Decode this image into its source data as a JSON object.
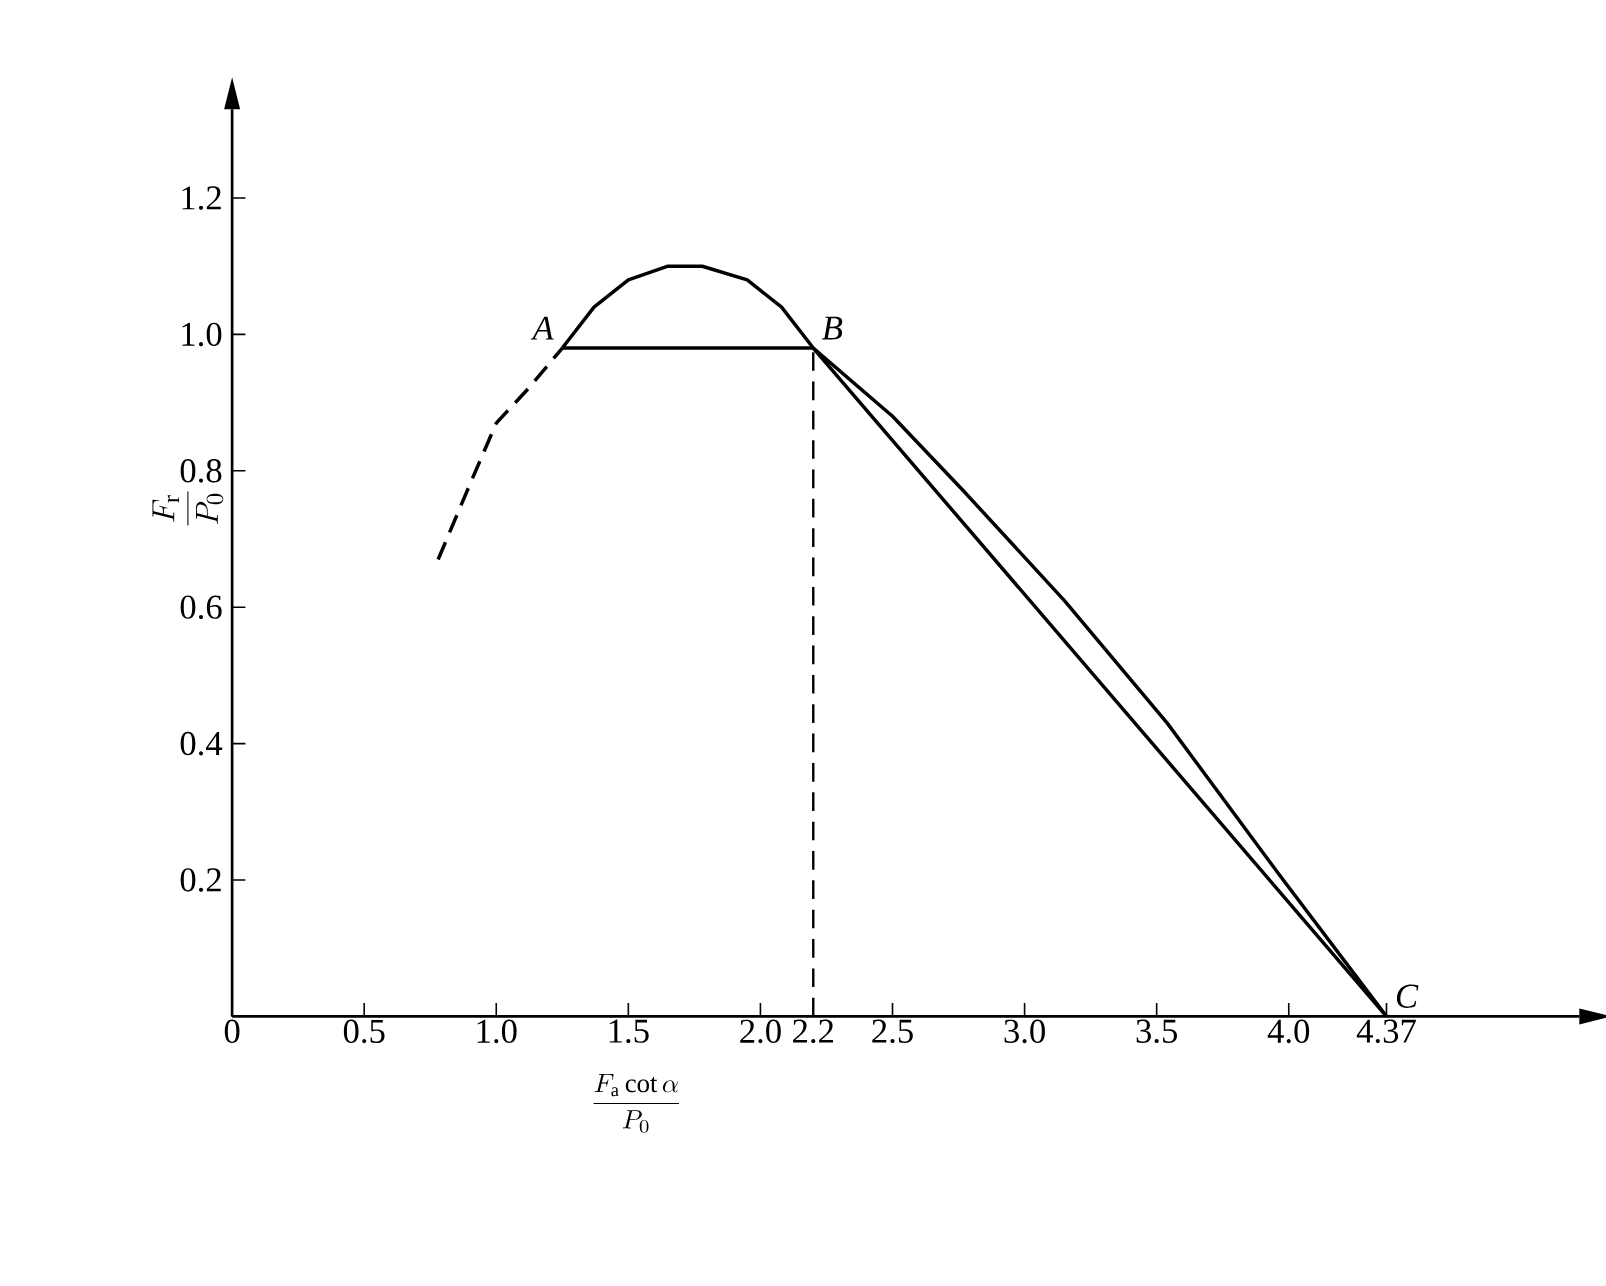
{
  "chart_data": {
    "type": "line",
    "xlabel": "\\frac{F_{\\mathrm{a}}\\cot\\alpha}{P_0}",
    "ylabel": "\\frac{F_{\\mathrm{r}}}{P_0}",
    "xlim": [
      0,
      5.1
    ],
    "ylim": [
      0,
      1.33
    ],
    "xticks": [
      0,
      0.5,
      {
        "value": 1.0,
        "label": "1.0"
      },
      1.5,
      {
        "value": 2.0,
        "label": "2.0"
      },
      2.2,
      2.5,
      {
        "value": 3.0,
        "label": "3.0"
      },
      3.5,
      {
        "value": 4.0,
        "label": "4.0"
      },
      4.37
    ],
    "yticks": [
      0.2,
      0.4,
      0.6,
      0.8,
      {
        "value": 1.0,
        "label": "1.0"
      },
      1.2
    ],
    "grid": false,
    "series": [
      {
        "color": "#000000",
        "line_style": "dashed",
        "x": [
          0.78,
          0.9,
          1.0,
          1.12,
          1.25
        ],
        "values": [
          0.67,
          0.78,
          0.87,
          0.92,
          0.98
        ]
      },
      {
        "color": "#000000",
        "line_style": "solid",
        "x": [
          1.25,
          1.37,
          1.5,
          1.65,
          1.78,
          1.95,
          2.08,
          2.2,
          2.5,
          2.77,
          3.15,
          3.54,
          3.96,
          4.37
        ],
        "values": [
          0.98,
          1.04,
          1.08,
          1.1,
          1.1,
          1.08,
          1.04,
          0.98,
          0.88,
          0.77,
          0.61,
          0.43,
          0.21,
          0
        ]
      },
      {
        "color": "#000000",
        "line_style": "solid",
        "x": [
          1.25,
          2.2,
          4.37
        ],
        "values": [
          0.98,
          0.98,
          0
        ]
      }
    ],
    "ref_lines": [
      {
        "axis": "x",
        "value": 2.2,
        "color": "#000000",
        "line_style": "dashed"
      }
    ],
    "annotations": [
      {
        "text": "A",
        "x": 1.25,
        "y": 0.98
      },
      {
        "text": "B",
        "x": 2.2,
        "y": 0.98
      },
      {
        "text": "C",
        "x": 4.37,
        "y": 0
      }
    ]
  }
}
